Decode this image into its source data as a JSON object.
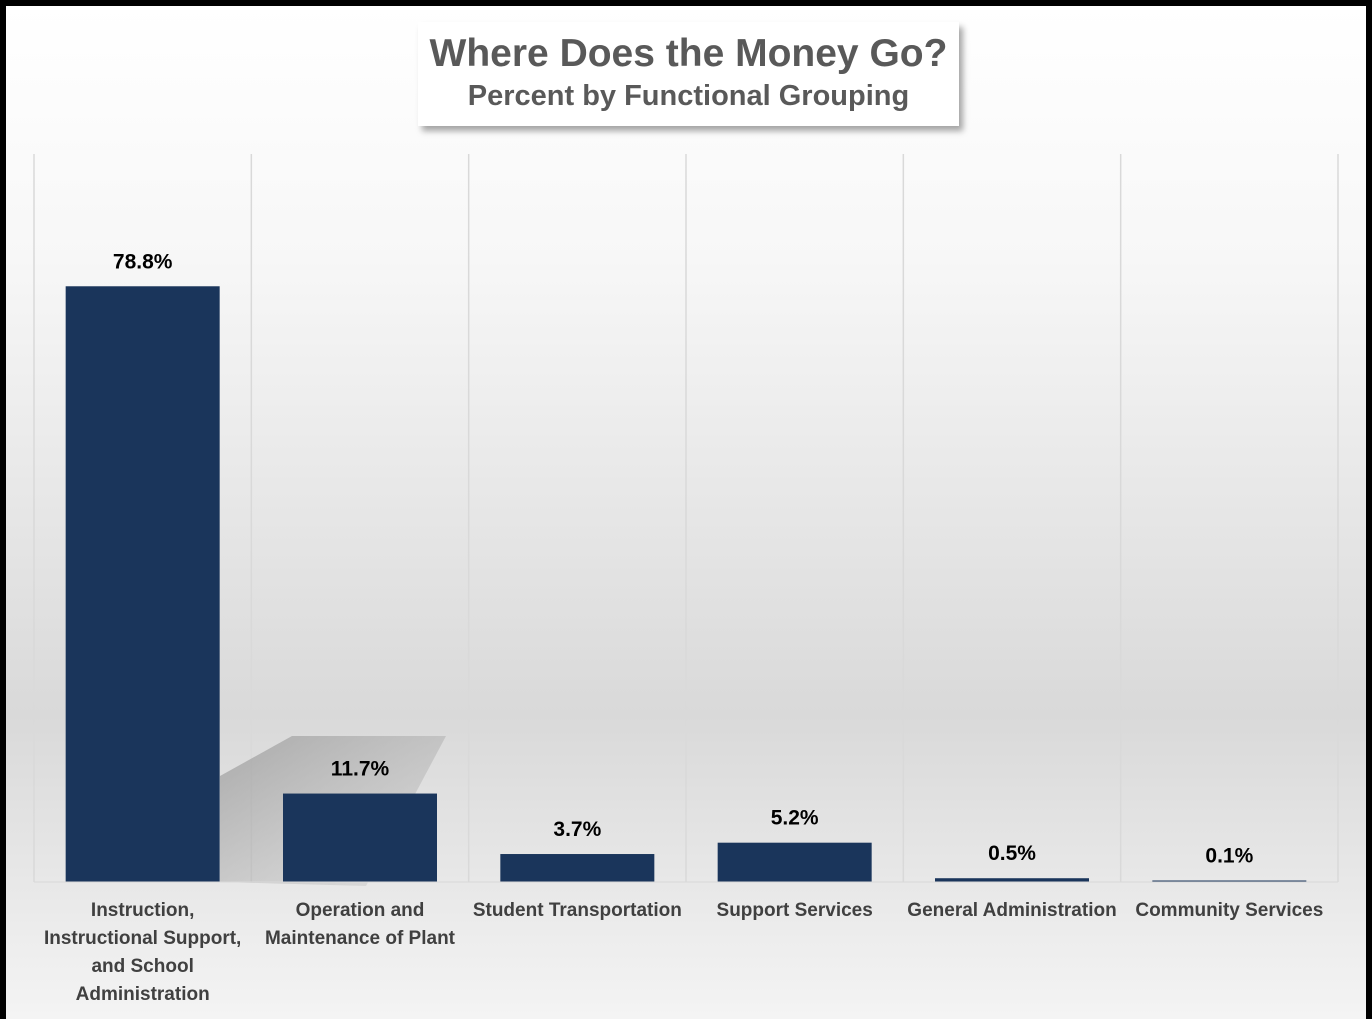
{
  "chart_data": {
    "type": "bar",
    "title": "Where Does the Money Go?",
    "subtitle": "Percent by Functional Grouping",
    "categories": [
      "Instruction, Instructional Support, and School Administration",
      "Operation and Maintenance of Plant",
      "Student Transportation",
      "Support Services",
      "General Administration",
      "Community Services"
    ],
    "values": [
      78.8,
      11.7,
      3.7,
      5.2,
      0.5,
      0.1
    ],
    "data_labels": [
      "78.8%",
      "11.7%",
      "3.7%",
      "5.2%",
      "0.5%",
      "0.1%"
    ],
    "bar_color": "#1a355b",
    "ylim": [
      0,
      100
    ],
    "grid": "vertical",
    "legend": "none"
  }
}
